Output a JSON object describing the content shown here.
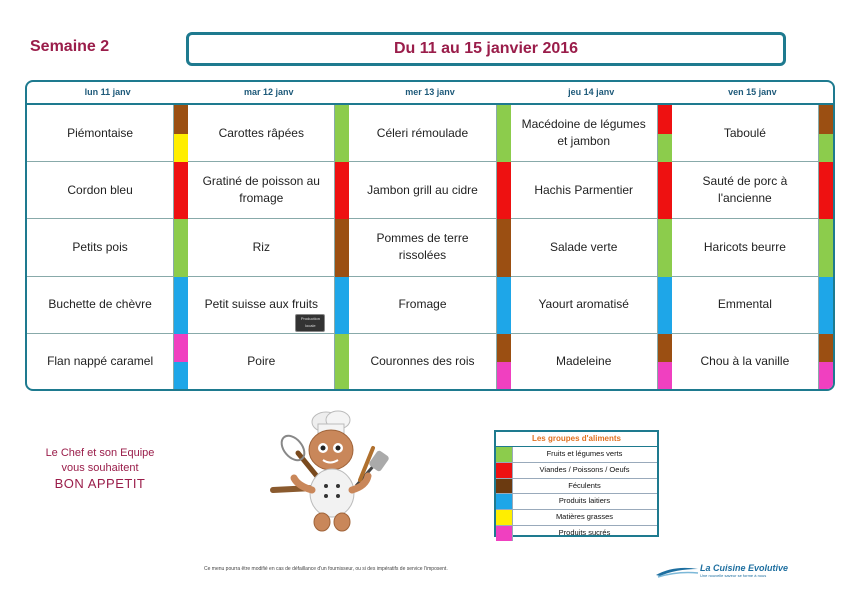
{
  "header": {
    "week": "Semaine 2",
    "dates": "Du 11 au 15 janvier 2016"
  },
  "days": [
    "lun 11 janv",
    "mar 12 janv",
    "mer 13 janv",
    "jeu 14 janv",
    "ven 15 janv"
  ],
  "menu": [
    [
      {
        "dish": "Piémontaise",
        "colors": [
          "#9b4f12",
          "#ffee00"
        ]
      },
      {
        "dish": "Carottes râpées",
        "colors": [
          "#8ccc4c"
        ]
      },
      {
        "dish": "Céleri rémoulade",
        "colors": [
          "#8ccc4c"
        ]
      },
      {
        "dish": "Macédoine de légumes et jambon",
        "colors": [
          "#ee1111",
          "#8ccc4c"
        ]
      },
      {
        "dish": "Taboulé",
        "colors": [
          "#9b4f12",
          "#8ccc4c"
        ]
      }
    ],
    [
      {
        "dish": "Cordon bleu",
        "colors": [
          "#ee1111"
        ]
      },
      {
        "dish": "Gratiné de poisson au fromage",
        "colors": [
          "#ee1111"
        ]
      },
      {
        "dish": "Jambon grill au cidre",
        "colors": [
          "#ee1111"
        ]
      },
      {
        "dish": "Hachis Parmentier",
        "colors": [
          "#ee1111"
        ]
      },
      {
        "dish": "Sauté de porc à l'ancienne",
        "colors": [
          "#ee1111"
        ]
      }
    ],
    [
      {
        "dish": "Petits pois",
        "colors": [
          "#8ccc4c"
        ]
      },
      {
        "dish": "Riz",
        "colors": [
          "#9b4f12"
        ]
      },
      {
        "dish": "Pommes de terre rissolées",
        "colors": [
          "#9b4f12"
        ]
      },
      {
        "dish": "Salade verte",
        "colors": [
          "#8ccc4c"
        ]
      },
      {
        "dish": "Haricots beurre",
        "colors": [
          "#8ccc4c"
        ]
      }
    ],
    [
      {
        "dish": "Buchette de chèvre",
        "colors": [
          "#1ea6e8"
        ]
      },
      {
        "dish": "Petit suisse aux fruits",
        "colors": [
          "#1ea6e8"
        ],
        "badge": true
      },
      {
        "dish": "Fromage",
        "colors": [
          "#1ea6e8"
        ]
      },
      {
        "dish": "Yaourt aromatisé",
        "colors": [
          "#1ea6e8"
        ]
      },
      {
        "dish": "Emmental",
        "colors": [
          "#1ea6e8"
        ]
      }
    ],
    [
      {
        "dish": "Flan nappé caramel",
        "colors": [
          "#f040c0",
          "#1ea6e8"
        ]
      },
      {
        "dish": "Poire",
        "colors": [
          "#8ccc4c"
        ]
      },
      {
        "dish": "Couronnes des rois",
        "colors": [
          "#9b4f12",
          "#f040c0"
        ]
      },
      {
        "dish": "Madeleine",
        "colors": [
          "#9b4f12",
          "#f040c0"
        ]
      },
      {
        "dish": "Chou à la vanille",
        "colors": [
          "#9b4f12",
          "#f040c0"
        ]
      }
    ]
  ],
  "badge_text": "Production locale",
  "greeting": {
    "line1": "Le Chef et son Equipe",
    "line2": "vous souhaitent",
    "line3": "BON APPETIT"
  },
  "legend": {
    "title": "Les groupes d'aliments",
    "items": [
      {
        "label": "Fruits et légumes verts",
        "color": "#8ccc4c"
      },
      {
        "label": "Viandes / Poissons / Oeufs",
        "color": "#ee1111"
      },
      {
        "label": "Féculents",
        "color": "#6b3a10"
      },
      {
        "label": "Produits laitiers",
        "color": "#1ea6e8"
      },
      {
        "label": "Matières grasses",
        "color": "#ffee00"
      },
      {
        "label": "Produits sucrés",
        "color": "#f040c0"
      }
    ]
  },
  "footnote": "Ce menu pourra être modifié en cas de défaillance d'un fournisseur, ou si des impératifs de service l'imposent.",
  "logo": {
    "name": "La Cuisine Evolutive",
    "tagline": "Une nouvelle saveur se forme à nous"
  }
}
